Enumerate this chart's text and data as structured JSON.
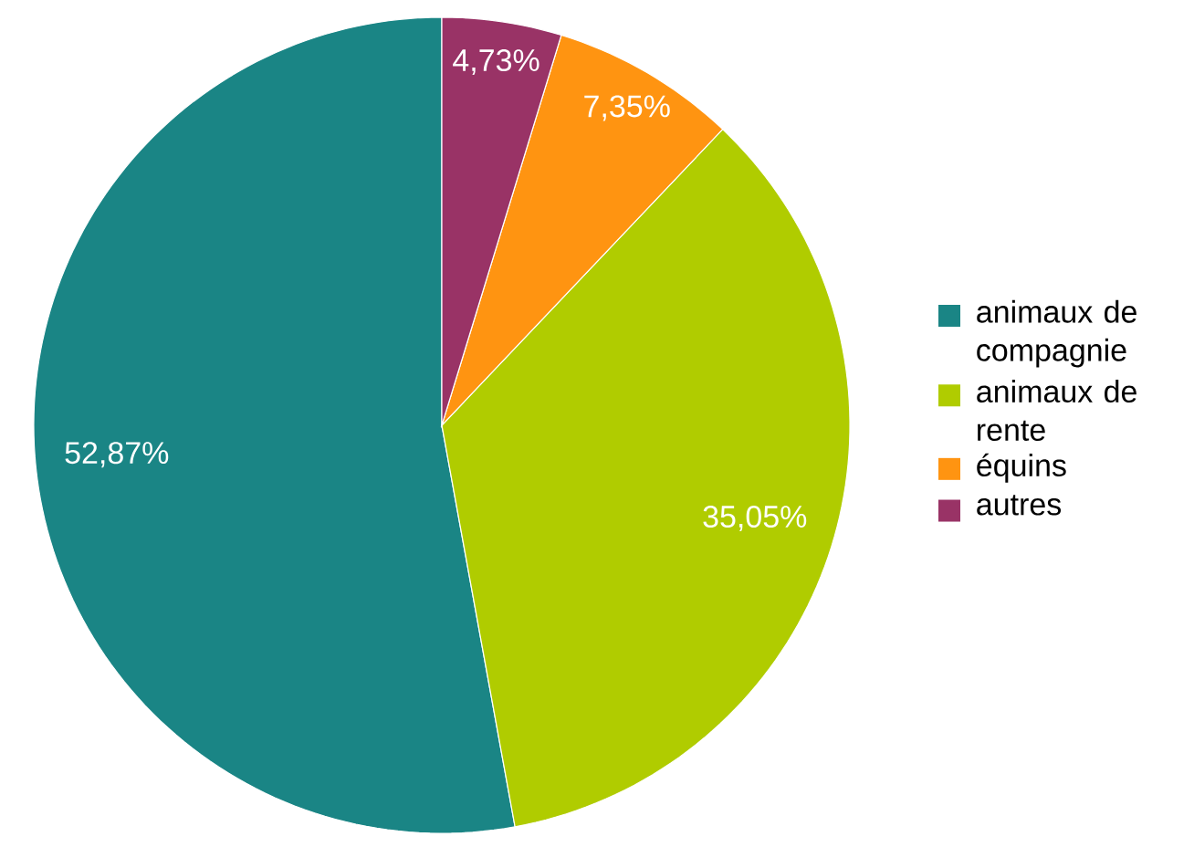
{
  "chart_data": {
    "type": "pie",
    "categories": [
      "animaux de compagnie",
      "animaux de rente",
      "équins",
      "autres"
    ],
    "values": [
      52.87,
      35.05,
      7.35,
      4.73
    ],
    "value_labels": [
      "52,87%",
      "35,05%",
      "7,35%",
      "4,73%"
    ],
    "colors": [
      "#1a8585",
      "#b0cc00",
      "#ff9411",
      "#993366"
    ],
    "legend": "right"
  }
}
